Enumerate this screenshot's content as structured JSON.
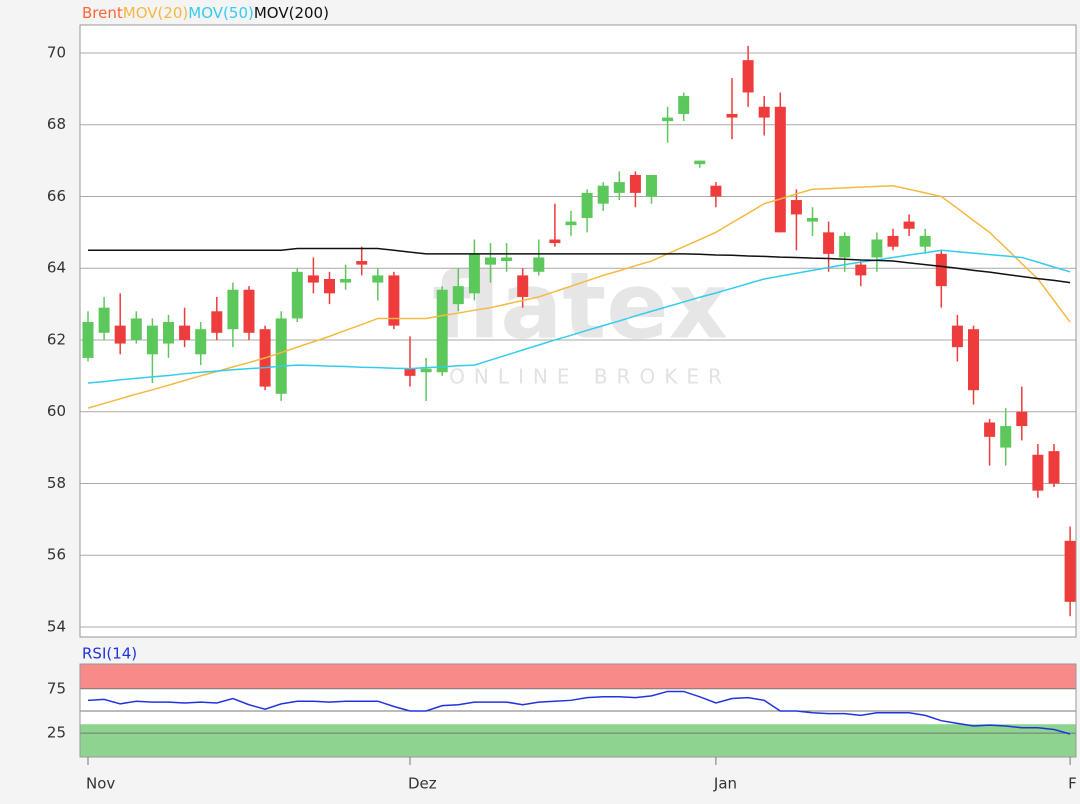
{
  "watermark": {
    "logo": "flatex",
    "tagline": "ONLINE BROKER"
  },
  "chart_data": [
    {
      "type": "candlestick",
      "candles": {
        "name": "Brent",
        "color": "#ff6633",
        "up_color": "#5cc85c",
        "down_color": "#ee3b3b",
        "open": [
          61.5,
          62.2,
          62.4,
          62.0,
          61.6,
          61.9,
          62.4,
          61.6,
          62.8,
          62.3,
          63.4,
          62.3,
          60.5,
          62.6,
          63.8,
          63.7,
          63.6,
          64.2,
          63.6,
          63.8,
          61.2,
          61.1,
          61.1,
          63.0,
          63.3,
          64.1,
          64.2,
          63.8,
          63.9,
          64.8,
          65.2,
          65.4,
          65.8,
          66.1,
          66.6,
          66.0,
          68.1,
          68.3,
          66.9,
          66.3,
          68.3,
          69.8,
          68.5,
          68.5,
          65.9,
          65.3,
          65.0,
          64.3,
          64.1,
          64.3,
          64.9,
          65.3,
          64.6,
          64.4,
          62.4,
          62.3,
          59.7,
          59.0,
          60.0,
          58.8,
          58.9,
          56.4
        ],
        "high": [
          62.8,
          63.2,
          63.3,
          62.8,
          62.6,
          62.7,
          62.9,
          62.5,
          63.2,
          63.6,
          63.5,
          62.4,
          62.8,
          64.0,
          64.3,
          63.9,
          64.1,
          64.6,
          64.0,
          63.9,
          62.1,
          61.5,
          63.5,
          64.0,
          64.8,
          64.7,
          64.7,
          64.0,
          64.8,
          65.8,
          65.6,
          66.2,
          66.4,
          66.7,
          66.7,
          66.6,
          68.5,
          68.9,
          67.0,
          66.4,
          69.3,
          70.2,
          68.8,
          68.9,
          66.2,
          65.7,
          65.3,
          65.0,
          64.2,
          65.0,
          65.1,
          65.5,
          65.1,
          64.5,
          62.7,
          62.4,
          59.8,
          60.1,
          60.7,
          59.1,
          59.1,
          56.8
        ],
        "low": [
          61.4,
          62.0,
          61.6,
          61.9,
          60.8,
          61.5,
          61.8,
          61.3,
          62.0,
          61.8,
          62.0,
          60.6,
          60.3,
          62.5,
          63.3,
          63.0,
          63.4,
          63.8,
          63.1,
          62.3,
          60.7,
          60.3,
          61.0,
          62.8,
          63.1,
          63.6,
          63.9,
          62.9,
          63.8,
          64.6,
          64.9,
          65.0,
          65.6,
          65.9,
          65.7,
          65.8,
          67.5,
          68.1,
          66.8,
          65.7,
          67.6,
          68.5,
          67.7,
          65.0,
          64.5,
          64.9,
          63.9,
          63.9,
          63.5,
          63.9,
          64.5,
          64.9,
          64.4,
          62.9,
          61.4,
          60.2,
          58.5,
          58.5,
          59.2,
          57.6,
          57.9,
          54.3
        ],
        "close": [
          62.5,
          62.9,
          61.9,
          62.6,
          62.4,
          62.5,
          62.0,
          62.3,
          62.2,
          63.4,
          62.2,
          60.7,
          62.6,
          63.9,
          63.6,
          63.3,
          63.7,
          64.1,
          63.8,
          62.4,
          61.0,
          61.2,
          63.4,
          63.5,
          64.4,
          64.3,
          64.3,
          63.2,
          64.3,
          64.7,
          65.3,
          66.1,
          66.3,
          66.4,
          66.1,
          66.6,
          68.2,
          68.8,
          67.0,
          66.0,
          68.2,
          68.9,
          68.2,
          65.0,
          65.5,
          65.4,
          64.4,
          64.9,
          63.8,
          64.8,
          64.6,
          65.1,
          64.9,
          63.5,
          61.8,
          60.6,
          59.3,
          59.6,
          59.6,
          57.8,
          58.0,
          54.7
        ]
      },
      "series": [
        {
          "name": "MOV(20)",
          "color": "#f5b942",
          "values": [
            60.1,
            60.23,
            60.36,
            60.49,
            60.61,
            60.74,
            60.87,
            61.0,
            61.12,
            61.25,
            61.37,
            61.5,
            61.65,
            61.8,
            61.95,
            62.1,
            62.27,
            62.43,
            62.6,
            62.6,
            62.6,
            62.6,
            62.68,
            62.75,
            62.83,
            62.9,
            63.0,
            63.1,
            63.2,
            63.35,
            63.5,
            63.65,
            63.8,
            63.93,
            64.07,
            64.2,
            64.4,
            64.6,
            64.8,
            65.0,
            65.27,
            65.53,
            65.8,
            65.93,
            66.07,
            66.2,
            66.22,
            66.24,
            66.26,
            66.28,
            66.3,
            66.2,
            66.1,
            66.0,
            65.67,
            65.33,
            65.0,
            64.57,
            64.13,
            63.7,
            63.1,
            62.5
          ]
        },
        {
          "name": "MOV(50)",
          "color": "#33ccee",
          "values": [
            60.8,
            60.84,
            60.89,
            60.93,
            60.97,
            61.01,
            61.06,
            61.1,
            61.13,
            61.17,
            61.2,
            61.23,
            61.27,
            61.3,
            61.29,
            61.27,
            61.26,
            61.24,
            61.23,
            61.21,
            61.2,
            61.23,
            61.25,
            61.28,
            61.3,
            61.44,
            61.58,
            61.72,
            61.86,
            62.0,
            62.13,
            62.27,
            62.4,
            62.53,
            62.67,
            62.8,
            62.93,
            63.06,
            63.19,
            63.31,
            63.44,
            63.57,
            63.7,
            63.78,
            63.86,
            63.94,
            64.02,
            64.1,
            64.17,
            64.23,
            64.3,
            64.37,
            64.43,
            64.5,
            64.46,
            64.42,
            64.38,
            64.34,
            64.3,
            64.17,
            64.03,
            63.9
          ]
        },
        {
          "name": "MOV(200)",
          "color": "#111111",
          "values": [
            64.5,
            64.5,
            64.5,
            64.5,
            64.5,
            64.5,
            64.5,
            64.5,
            64.5,
            64.5,
            64.5,
            64.5,
            64.5,
            64.55,
            64.55,
            64.55,
            64.55,
            64.55,
            64.55,
            64.5,
            64.45,
            64.4,
            64.4,
            64.4,
            64.4,
            64.4,
            64.4,
            64.4,
            64.4,
            64.4,
            64.4,
            64.4,
            64.4,
            64.4,
            64.4,
            64.4,
            64.4,
            64.4,
            64.39,
            64.37,
            64.36,
            64.34,
            64.33,
            64.31,
            64.3,
            64.28,
            64.27,
            64.25,
            64.23,
            64.22,
            64.2,
            64.15,
            64.1,
            64.05,
            64.0,
            63.94,
            63.89,
            63.83,
            63.77,
            63.71,
            63.66,
            63.6
          ]
        }
      ],
      "ylim": [
        53.72,
        70.78
      ],
      "yticks": [
        54,
        56,
        58,
        60,
        62,
        64,
        66,
        68,
        70
      ],
      "grid": true
    },
    {
      "type": "line",
      "categories": [
        "Nov",
        null,
        null,
        null,
        null,
        null,
        null,
        null,
        null,
        null,
        null,
        null,
        null,
        null,
        null,
        null,
        null,
        null,
        null,
        null,
        "Dez",
        null,
        null,
        null,
        null,
        null,
        null,
        null,
        null,
        null,
        null,
        null,
        null,
        null,
        null,
        null,
        null,
        null,
        null,
        "Jan",
        null,
        null,
        null,
        null,
        null,
        null,
        null,
        null,
        null,
        null,
        null,
        null,
        null,
        null,
        null,
        null,
        null,
        null,
        null,
        null,
        null,
        "F"
      ],
      "series": [
        {
          "name": "RSI(14)",
          "color": "#2233dd",
          "values": [
            62,
            63,
            58,
            61,
            60,
            60,
            59,
            60,
            59,
            64,
            57,
            52,
            58,
            61,
            61,
            60,
            61,
            61,
            61,
            55,
            50,
            50,
            56,
            57,
            60,
            60,
            60,
            57,
            60,
            61,
            62,
            65,
            66,
            66,
            65,
            67,
            72,
            72,
            66,
            59,
            64,
            65,
            62,
            50,
            50,
            48,
            47,
            47,
            45,
            48,
            48,
            48,
            45,
            39,
            36,
            33,
            34,
            33,
            31,
            31,
            29,
            24
          ]
        }
      ],
      "bands": [
        {
          "from": 75,
          "to": 103,
          "color": "#f98a8a"
        },
        {
          "from": -2,
          "to": 35,
          "color": "#8ed48e"
        }
      ],
      "ylim": [
        -2,
        103
      ],
      "yticks": [
        25,
        50,
        75
      ],
      "grid": true
    }
  ]
}
